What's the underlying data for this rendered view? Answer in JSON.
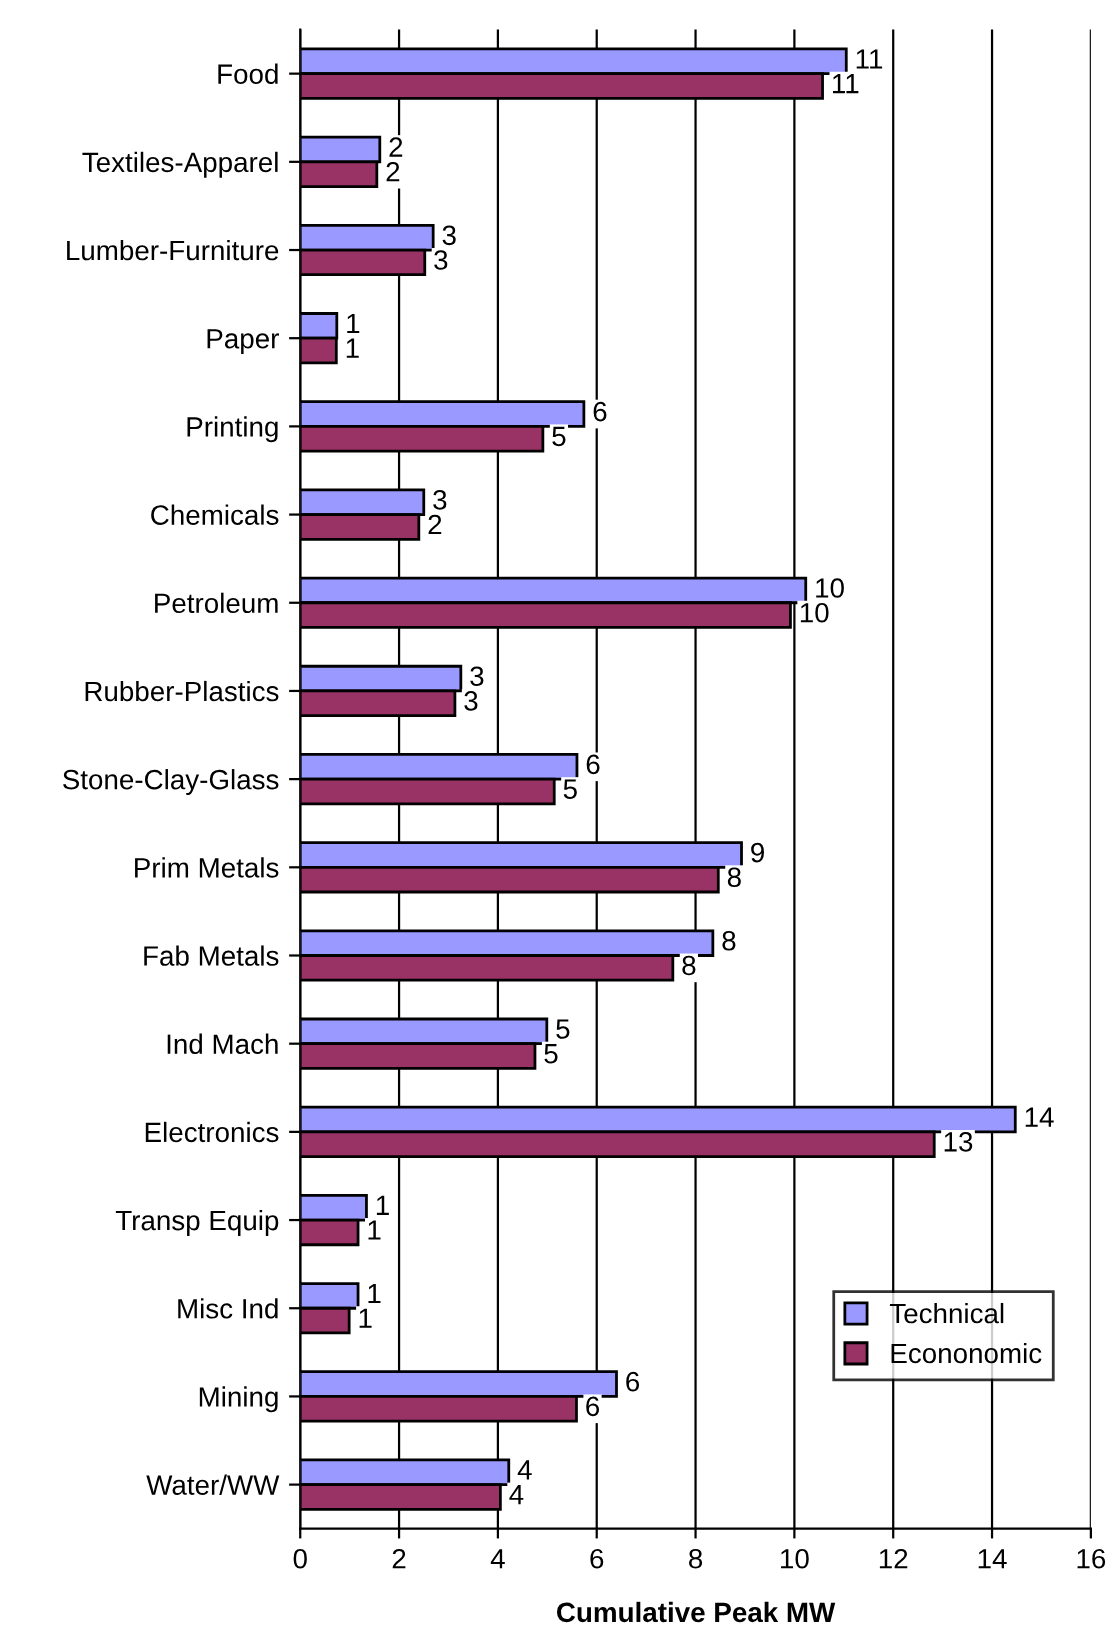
{
  "chart_data": {
    "type": "bar",
    "orientation": "horizontal",
    "xlabel": "Cumulative Peak MW",
    "categories": [
      "Food",
      "Textiles-Apparel",
      "Lumber-Furniture",
      "Paper",
      "Printing",
      "Chemicals",
      "Petroleum",
      "Rubber-Plastics",
      "Stone-Clay-Glass",
      "Prim Metals",
      "Fab Metals",
      "Ind Mach",
      "Electronics",
      "Transp Equip",
      "Misc Ind",
      "Mining",
      "Water/WW"
    ],
    "series": [
      {
        "name": "Technical",
        "color": "#9999ff",
        "values": [
          11.05,
          1.61,
          2.69,
          0.74,
          5.74,
          2.5,
          10.23,
          3.25,
          5.6,
          8.93,
          8.35,
          4.99,
          14.47,
          1.34,
          1.17,
          6.4,
          4.22
        ],
        "value_labels": [
          "11",
          "2",
          "3",
          "1",
          "6",
          "3",
          "10",
          "3",
          "6",
          "9",
          "8",
          "5",
          "14",
          "1",
          "1",
          "6",
          "4"
        ]
      },
      {
        "name": "Econonomic",
        "color": "#993366",
        "values": [
          10.57,
          1.55,
          2.52,
          0.73,
          4.91,
          2.4,
          9.92,
          3.13,
          5.14,
          8.46,
          7.54,
          4.75,
          12.83,
          1.17,
          0.99,
          5.59,
          4.05
        ],
        "value_labels": [
          "11",
          "2",
          "3",
          "1",
          "5",
          "2",
          "10",
          "3",
          "5",
          "8",
          "8",
          "5",
          "13",
          "1",
          "1",
          "6",
          "4"
        ]
      }
    ],
    "xlim": [
      0,
      16
    ],
    "xticks": [
      0,
      2,
      4,
      6,
      8,
      10,
      12,
      14,
      16
    ],
    "grid": "x",
    "legend": "bottom right"
  }
}
